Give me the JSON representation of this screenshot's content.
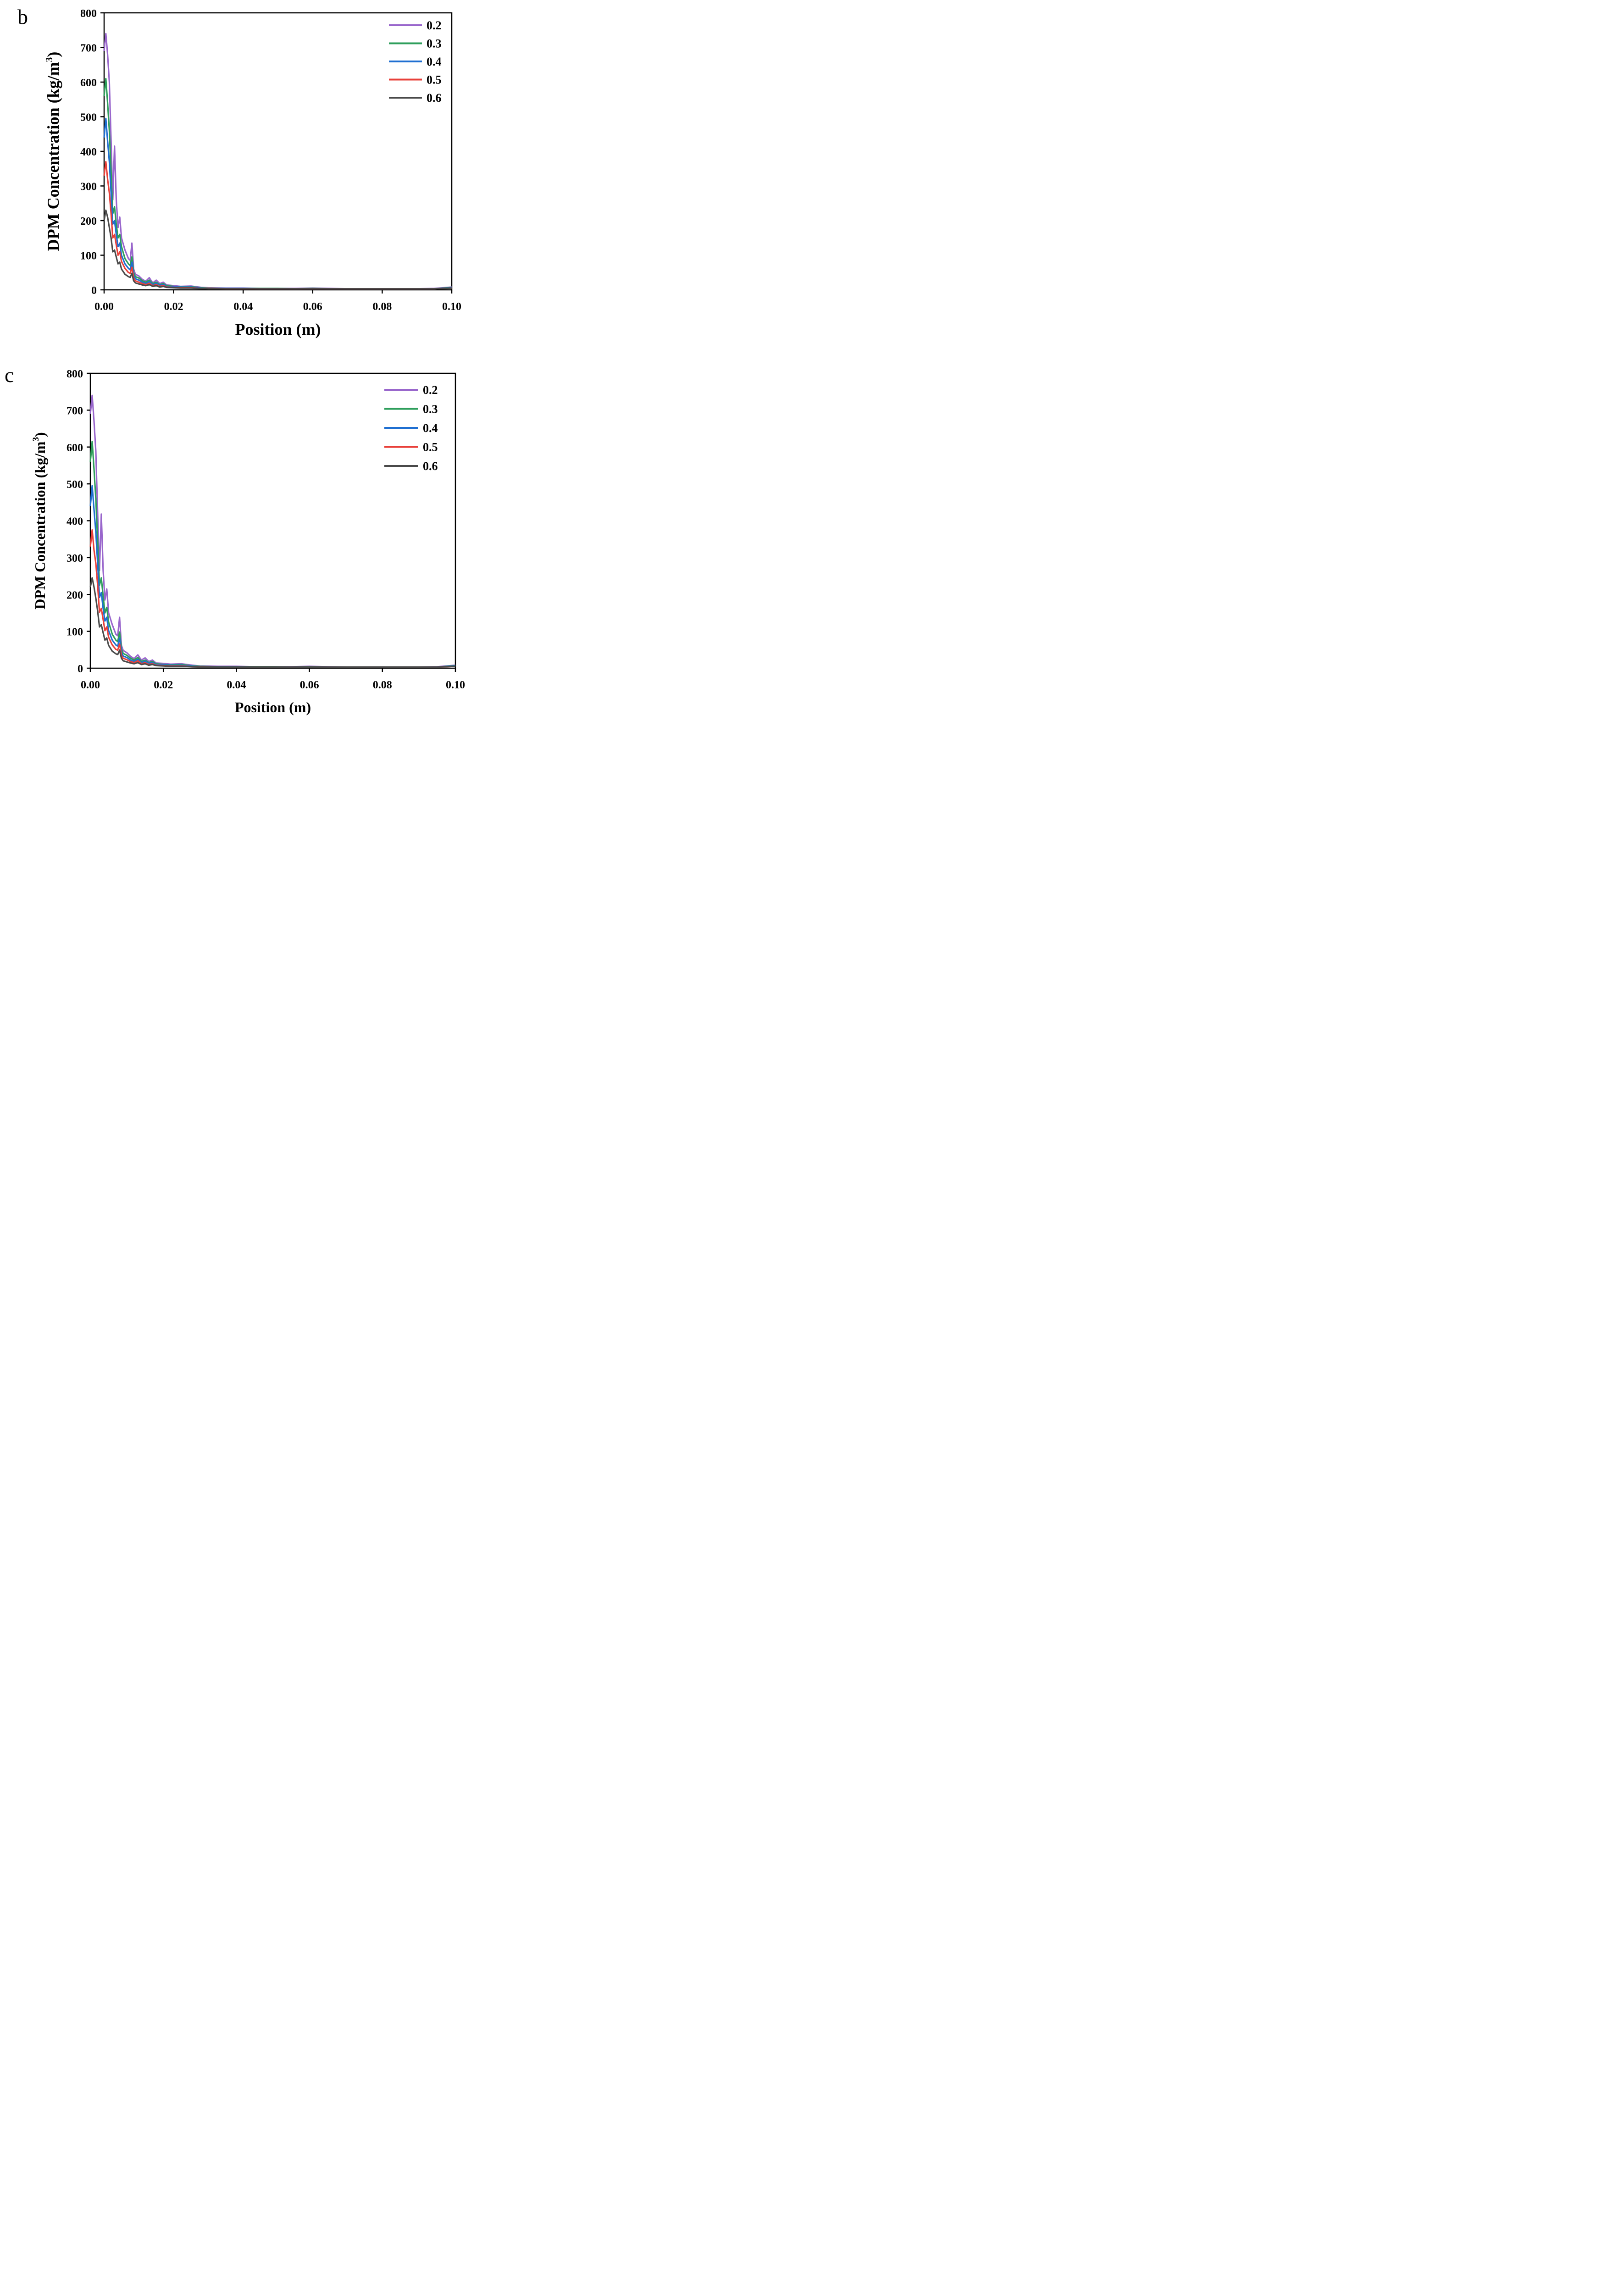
{
  "chart_data": [
    {
      "panel": "b",
      "type": "line",
      "xlabel": "Position (m)",
      "ylabel": "DPM Concentration (kg/m",
      "ylabel_sup": "3",
      "ylabel_close": ")",
      "xlim": [
        0,
        0.1
      ],
      "ylim": [
        0,
        800
      ],
      "xticks": [
        0,
        0.02,
        0.04,
        0.06,
        0.08,
        0.1
      ],
      "xtick_labels": [
        "0.00",
        "0.02",
        "0.04",
        "0.06",
        "0.08",
        "0.10"
      ],
      "yticks": [
        0,
        100,
        200,
        300,
        400,
        500,
        600,
        700,
        800
      ],
      "ytick_labels": [
        "0",
        "100",
        "200",
        "300",
        "400",
        "500",
        "600",
        "700",
        "800"
      ],
      "grid": false,
      "legend_position": "top-right",
      "x": [
        0,
        0.0005,
        0.001,
        0.0015,
        0.002,
        0.0025,
        0.003,
        0.0035,
        0.004,
        0.0045,
        0.005,
        0.006,
        0.007,
        0.0075,
        0.008,
        0.0085,
        0.009,
        0.01,
        0.011,
        0.012,
        0.013,
        0.014,
        0.015,
        0.016,
        0.017,
        0.018,
        0.02,
        0.022,
        0.025,
        0.028,
        0.03,
        0.035,
        0.04,
        0.045,
        0.05,
        0.055,
        0.06,
        0.065,
        0.07,
        0.075,
        0.08,
        0.085,
        0.09,
        0.095,
        0.1
      ],
      "series": [
        {
          "name": "0.2",
          "color": "#9966CC",
          "values": [
            690,
            740,
            680,
            600,
            430,
            260,
            415,
            260,
            180,
            210,
            150,
            115,
            90,
            85,
            135,
            60,
            45,
            40,
            30,
            25,
            35,
            20,
            28,
            18,
            22,
            14,
            12,
            10,
            11,
            7,
            6,
            5,
            5,
            4,
            4,
            4,
            5,
            4,
            3,
            3,
            3,
            3,
            3,
            4,
            8
          ]
        },
        {
          "name": "0.3",
          "color": "#2E9E5B",
          "values": [
            560,
            610,
            540,
            460,
            340,
            220,
            240,
            190,
            150,
            160,
            125,
            90,
            75,
            70,
            95,
            50,
            38,
            34,
            26,
            22,
            28,
            18,
            22,
            15,
            18,
            12,
            10,
            9,
            9,
            6,
            5,
            4,
            4,
            4,
            4,
            3,
            4,
            3,
            3,
            3,
            3,
            3,
            3,
            3,
            7
          ]
        },
        {
          "name": "0.4",
          "color": "#1F6FD1",
          "values": [
            440,
            495,
            430,
            370,
            280,
            190,
            200,
            160,
            125,
            135,
            100,
            75,
            62,
            58,
            80,
            42,
            32,
            28,
            22,
            18,
            24,
            15,
            19,
            13,
            15,
            10,
            9,
            8,
            8,
            5,
            4,
            4,
            4,
            3,
            3,
            3,
            3,
            3,
            3,
            3,
            3,
            3,
            3,
            3,
            6
          ]
        },
        {
          "name": "0.5",
          "color": "#E8403A",
          "values": [
            330,
            370,
            320,
            280,
            220,
            150,
            160,
            130,
            100,
            110,
            82,
            62,
            50,
            48,
            65,
            34,
            26,
            22,
            18,
            15,
            19,
            12,
            15,
            10,
            12,
            8,
            7,
            6,
            6,
            4,
            4,
            3,
            3,
            3,
            3,
            3,
            3,
            3,
            3,
            3,
            3,
            3,
            3,
            3,
            5
          ]
        },
        {
          "name": "0.6",
          "color": "#4A4A4A",
          "values": [
            200,
            230,
            210,
            180,
            150,
            110,
            115,
            95,
            75,
            80,
            60,
            45,
            38,
            36,
            48,
            26,
            20,
            17,
            14,
            12,
            15,
            10,
            12,
            8,
            10,
            7,
            6,
            5,
            5,
            4,
            3,
            3,
            3,
            3,
            3,
            3,
            3,
            3,
            3,
            3,
            3,
            3,
            3,
            3,
            5
          ]
        }
      ]
    },
    {
      "panel": "c",
      "type": "line",
      "xlabel": "Position (m)",
      "ylabel": "DPM Concentration (kg/m",
      "ylabel_sup": "3",
      "ylabel_close": ")",
      "xlim": [
        0,
        0.1
      ],
      "ylim": [
        0,
        800
      ],
      "xticks": [
        0,
        0.02,
        0.04,
        0.06,
        0.08,
        0.1
      ],
      "xtick_labels": [
        "0.00",
        "0.02",
        "0.04",
        "0.06",
        "0.08",
        "0.10"
      ],
      "yticks": [
        0,
        100,
        200,
        300,
        400,
        500,
        600,
        700,
        800
      ],
      "ytick_labels": [
        "0",
        "100",
        "200",
        "300",
        "400",
        "500",
        "600",
        "700",
        "800"
      ],
      "grid": false,
      "legend_position": "top-right",
      "x": [
        0,
        0.0005,
        0.001,
        0.0015,
        0.002,
        0.0025,
        0.003,
        0.0035,
        0.004,
        0.0045,
        0.005,
        0.006,
        0.007,
        0.0075,
        0.008,
        0.0085,
        0.009,
        0.01,
        0.011,
        0.012,
        0.013,
        0.014,
        0.015,
        0.016,
        0.017,
        0.018,
        0.02,
        0.022,
        0.025,
        0.028,
        0.03,
        0.035,
        0.04,
        0.045,
        0.05,
        0.055,
        0.06,
        0.065,
        0.07,
        0.075,
        0.08,
        0.085,
        0.09,
        0.095,
        0.1
      ],
      "series": [
        {
          "name": "0.2",
          "color": "#9966CC",
          "values": [
            690,
            740,
            670,
            590,
            420,
            265,
            418,
            265,
            185,
            215,
            150,
            118,
            92,
            88,
            138,
            62,
            48,
            42,
            32,
            26,
            36,
            22,
            28,
            18,
            22,
            14,
            13,
            11,
            12,
            8,
            6,
            5,
            5,
            4,
            4,
            4,
            5,
            4,
            3,
            3,
            3,
            3,
            3,
            4,
            8
          ]
        },
        {
          "name": "0.3",
          "color": "#2E9E5B",
          "values": [
            560,
            615,
            540,
            460,
            345,
            225,
            245,
            195,
            150,
            165,
            125,
            92,
            76,
            72,
            98,
            52,
            40,
            35,
            27,
            22,
            29,
            18,
            22,
            15,
            18,
            12,
            10,
            9,
            10,
            6,
            5,
            4,
            4,
            4,
            4,
            3,
            4,
            3,
            3,
            3,
            3,
            3,
            3,
            3,
            7
          ]
        },
        {
          "name": "0.4",
          "color": "#1F6FD1",
          "values": [
            440,
            495,
            430,
            370,
            285,
            192,
            205,
            162,
            128,
            138,
            102,
            76,
            63,
            60,
            82,
            43,
            33,
            29,
            22,
            18,
            24,
            15,
            19,
            13,
            15,
            10,
            9,
            8,
            8,
            5,
            4,
            4,
            4,
            3,
            3,
            3,
            3,
            3,
            3,
            3,
            3,
            3,
            3,
            3,
            6
          ]
        },
        {
          "name": "0.5",
          "color": "#E8403A",
          "values": [
            330,
            375,
            320,
            285,
            225,
            152,
            162,
            132,
            102,
            112,
            84,
            63,
            51,
            49,
            66,
            35,
            27,
            23,
            18,
            15,
            20,
            12,
            15,
            10,
            12,
            8,
            7,
            6,
            6,
            4,
            4,
            3,
            3,
            3,
            3,
            3,
            3,
            3,
            3,
            3,
            3,
            3,
            3,
            3,
            5
          ]
        },
        {
          "name": "0.6",
          "color": "#4A4A4A",
          "values": [
            220,
            245,
            220,
            190,
            155,
            112,
            118,
            96,
            76,
            82,
            62,
            46,
            39,
            37,
            49,
            27,
            20,
            17,
            14,
            12,
            15,
            10,
            12,
            8,
            10,
            7,
            6,
            5,
            5,
            4,
            3,
            3,
            3,
            3,
            3,
            3,
            3,
            3,
            3,
            3,
            3,
            3,
            3,
            3,
            5
          ]
        }
      ]
    }
  ]
}
